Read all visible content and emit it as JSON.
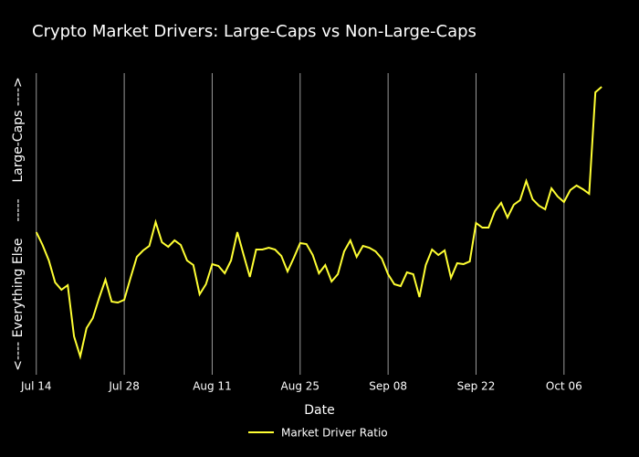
{
  "chart_data": {
    "type": "line",
    "title": "Crypto Market Drivers: Large-Caps vs Non-Large-Caps",
    "xlabel": "Date",
    "ylabel": "<---- Everything Else    -----    Large-Caps ---->",
    "x": [
      "Jul 14",
      "Jul 15",
      "Jul 16",
      "Jul 17",
      "Jul 18",
      "Jul 19",
      "Jul 20",
      "Jul 21",
      "Jul 22",
      "Jul 23",
      "Jul 24",
      "Jul 25",
      "Jul 26",
      "Jul 27",
      "Jul 28",
      "Jul 29",
      "Jul 30",
      "Jul 31",
      "Aug 01",
      "Aug 02",
      "Aug 03",
      "Aug 04",
      "Aug 05",
      "Aug 06",
      "Aug 07",
      "Aug 08",
      "Aug 09",
      "Aug 10",
      "Aug 11",
      "Aug 12",
      "Aug 13",
      "Aug 14",
      "Aug 15",
      "Aug 16",
      "Aug 17",
      "Aug 18",
      "Aug 19",
      "Aug 20",
      "Aug 21",
      "Aug 22",
      "Aug 23",
      "Aug 24",
      "Aug 25",
      "Aug 26",
      "Aug 27",
      "Aug 28",
      "Aug 29",
      "Aug 30",
      "Aug 31",
      "Sep 01",
      "Sep 02",
      "Sep 03",
      "Sep 04",
      "Sep 05",
      "Sep 06",
      "Sep 07",
      "Sep 08",
      "Sep 09",
      "Sep 10",
      "Sep 11",
      "Sep 12",
      "Sep 13",
      "Sep 14",
      "Sep 15",
      "Sep 16",
      "Sep 17",
      "Sep 18",
      "Sep 19",
      "Sep 20",
      "Sep 21",
      "Sep 22",
      "Sep 23",
      "Sep 24",
      "Sep 25",
      "Sep 26",
      "Sep 27",
      "Sep 28",
      "Sep 29",
      "Sep 30",
      "Oct 01",
      "Oct 02",
      "Oct 03",
      "Oct 04",
      "Oct 05",
      "Oct 06",
      "Oct 07",
      "Oct 08",
      "Oct 09",
      "Oct 10",
      "Oct 11",
      "Oct 12"
    ],
    "series": [
      {
        "name": "Market Driver Ratio",
        "color": "#ffff33",
        "values": [
          1.51,
          1.37,
          1.2,
          0.96,
          0.88,
          0.93,
          0.37,
          0.15,
          0.46,
          0.57,
          0.79,
          0.99,
          0.75,
          0.74,
          0.77,
          1.01,
          1.24,
          1.31,
          1.36,
          1.62,
          1.4,
          1.35,
          1.42,
          1.37,
          1.2,
          1.15,
          0.83,
          0.94,
          1.16,
          1.14,
          1.06,
          1.2,
          1.51,
          1.26,
          1.02,
          1.32,
          1.32,
          1.34,
          1.32,
          1.25,
          1.08,
          1.23,
          1.39,
          1.38,
          1.26,
          1.06,
          1.15,
          0.97,
          1.05,
          1.3,
          1.42,
          1.24,
          1.36,
          1.34,
          1.3,
          1.22,
          1.05,
          0.94,
          0.92,
          1.07,
          1.05,
          0.8,
          1.15,
          1.32,
          1.26,
          1.31,
          1.01,
          1.17,
          1.16,
          1.19,
          1.61,
          1.56,
          1.56,
          1.74,
          1.83,
          1.67,
          1.81,
          1.86,
          2.07,
          1.87,
          1.8,
          1.76,
          1.99,
          1.9,
          1.84,
          1.97,
          2.02,
          1.98,
          1.93,
          3.04,
          3.1
        ]
      }
    ],
    "xlim": [
      "Jul 12",
      "Oct 13"
    ],
    "xticks": [
      "Jul 14",
      "Jul 28",
      "Aug 11",
      "Aug 25",
      "Sep 08",
      "Sep 22",
      "Oct 06"
    ],
    "ylim": [
      0,
      3.25
    ],
    "grid": true,
    "legend": "bottom"
  }
}
